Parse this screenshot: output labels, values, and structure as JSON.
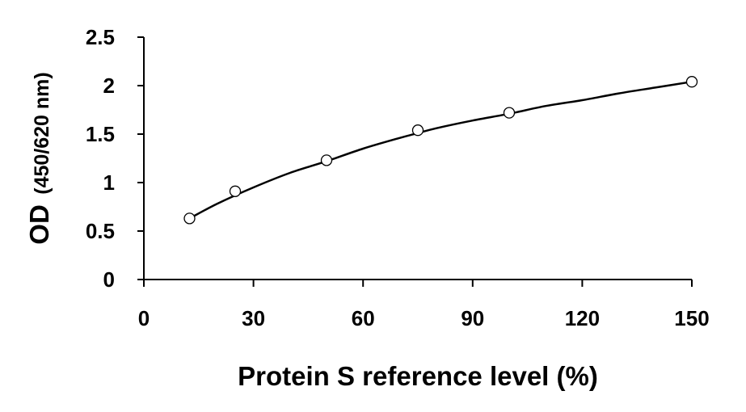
{
  "chart_data": {
    "type": "scatter",
    "title": "",
    "xlabel": "Protein S reference level (%)",
    "ylabel_main": "OD",
    "ylabel_unit": "(450/620 nm)",
    "xlim": [
      0,
      150
    ],
    "ylim": [
      0,
      2.5
    ],
    "x_ticks": [
      0,
      30,
      60,
      90,
      120,
      150
    ],
    "x_tick_labels": [
      "0",
      "30",
      "60",
      "90",
      "120",
      "150"
    ],
    "y_ticks": [
      0,
      0.5,
      1,
      1.5,
      2,
      2.5
    ],
    "y_tick_labels": [
      "0",
      "0.5",
      "1",
      "1.5",
      "2",
      "2.5"
    ],
    "grid": false,
    "legend": "none",
    "series": [
      {
        "marker": "open-circle",
        "x": [
          12.5,
          25,
          50,
          75,
          100,
          150
        ],
        "y": [
          0.63,
          0.91,
          1.23,
          1.54,
          1.72,
          2.04
        ]
      }
    ],
    "fit_curve": {
      "style": "solid-black",
      "x": [
        12.5,
        20,
        30,
        40,
        50,
        60,
        70,
        75,
        80,
        90,
        100,
        110,
        120,
        130,
        140,
        150
      ],
      "y": [
        0.63,
        0.78,
        0.95,
        1.1,
        1.22,
        1.35,
        1.46,
        1.51,
        1.56,
        1.64,
        1.71,
        1.79,
        1.85,
        1.92,
        1.98,
        2.04
      ]
    },
    "colors": {
      "axis": "#000000",
      "marker_stroke": "#000000",
      "curve": "#000000",
      "background": "#ffffff"
    }
  }
}
